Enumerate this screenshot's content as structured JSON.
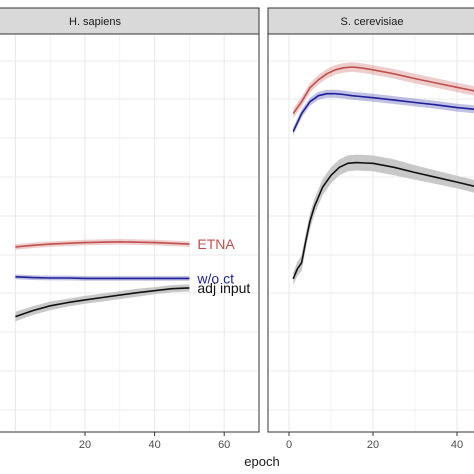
{
  "chart_data": {
    "type": "line",
    "xlabel": "epoch",
    "ylabel": "",
    "grid": true,
    "colors": {
      "ETNA": "#c0504d",
      "w/o ct": "#1f1f9a",
      "adj input": "#111111",
      "band": "#c8c8c8",
      "panel_bg": "#ffffff",
      "grid": "#ebebeb",
      "strip_bg": "#d9d9d9"
    },
    "panels": [
      {
        "title": "H. sapiens",
        "xlim": [
          -5,
          70
        ],
        "ylim": [
          0,
          1
        ],
        "xticks": [
          20,
          40,
          60
        ],
        "series": [
          {
            "name": "ETNA",
            "label": "ETNA",
            "x": [
              0,
              5,
              10,
              15,
              20,
              25,
              30,
              35,
              40,
              45,
              50
            ],
            "y": [
              0.465,
              0.469,
              0.472,
              0.474,
              0.476,
              0.477,
              0.478,
              0.477,
              0.476,
              0.474,
              0.472
            ],
            "band": [
              0.007,
              0.007,
              0.007,
              0.007,
              0.007,
              0.007,
              0.007,
              0.007,
              0.007,
              0.007,
              0.007
            ]
          },
          {
            "name": "w/o ct",
            "label": "w/o ct",
            "x": [
              0,
              5,
              10,
              15,
              20,
              25,
              30,
              35,
              40,
              45,
              50
            ],
            "y": [
              0.39,
              0.388,
              0.387,
              0.387,
              0.386,
              0.386,
              0.386,
              0.386,
              0.386,
              0.386,
              0.386
            ],
            "band": [
              0.006,
              0.006,
              0.006,
              0.006,
              0.006,
              0.006,
              0.006,
              0.006,
              0.006,
              0.006,
              0.006
            ]
          },
          {
            "name": "adj input",
            "label": "adj input",
            "x": [
              0,
              5,
              10,
              15,
              20,
              25,
              30,
              35,
              40,
              45,
              50
            ],
            "y": [
              0.29,
              0.305,
              0.317,
              0.325,
              0.332,
              0.338,
              0.344,
              0.35,
              0.355,
              0.36,
              0.362
            ],
            "band": [
              0.012,
              0.011,
              0.011,
              0.01,
              0.01,
              0.01,
              0.01,
              0.01,
              0.009,
              0.009,
              0.009
            ]
          }
        ]
      },
      {
        "title": "S. cerevisiae",
        "xlim": [
          -5,
          45
        ],
        "ylim": [
          0,
          1
        ],
        "xticks": [
          0,
          20,
          40
        ],
        "series": [
          {
            "name": "ETNA",
            "x": [
              1,
              3,
              5,
              7,
              9,
              11,
              13,
              15,
              17,
              20,
              25,
              30,
              35,
              40,
              45
            ],
            "y": [
              0.8,
              0.83,
              0.865,
              0.885,
              0.9,
              0.91,
              0.915,
              0.917,
              0.915,
              0.91,
              0.9,
              0.888,
              0.877,
              0.866,
              0.855
            ],
            "band": [
              0.012,
              0.012,
              0.012,
              0.012,
              0.012,
              0.012,
              0.012,
              0.012,
              0.012,
              0.012,
              0.012,
              0.012,
              0.012,
              0.012,
              0.012
            ]
          },
          {
            "name": "w/o ct",
            "x": [
              1,
              3,
              5,
              7,
              9,
              11,
              13,
              15,
              17,
              20,
              25,
              30,
              35,
              40,
              45
            ],
            "y": [
              0.755,
              0.8,
              0.83,
              0.845,
              0.85,
              0.85,
              0.848,
              0.845,
              0.843,
              0.84,
              0.834,
              0.828,
              0.822,
              0.815,
              0.81
            ],
            "band": [
              0.01,
              0.01,
              0.01,
              0.01,
              0.01,
              0.01,
              0.01,
              0.01,
              0.01,
              0.01,
              0.01,
              0.01,
              0.01,
              0.01,
              0.01
            ]
          },
          {
            "name": "adj input",
            "x": [
              1,
              2,
              3,
              4,
              5,
              6,
              8,
              10,
              12,
              14,
              16,
              18,
              20,
              25,
              30,
              35,
              40,
              45
            ],
            "y": [
              0.385,
              0.41,
              0.425,
              0.48,
              0.53,
              0.565,
              0.615,
              0.645,
              0.665,
              0.675,
              0.677,
              0.676,
              0.675,
              0.665,
              0.652,
              0.64,
              0.628,
              0.615
            ],
            "band": [
              0.015,
              0.018,
              0.02,
              0.02,
              0.02,
              0.02,
              0.02,
              0.02,
              0.02,
              0.02,
              0.02,
              0.02,
              0.02,
              0.02,
              0.018,
              0.017,
              0.016,
              0.016
            ]
          }
        ]
      }
    ]
  }
}
